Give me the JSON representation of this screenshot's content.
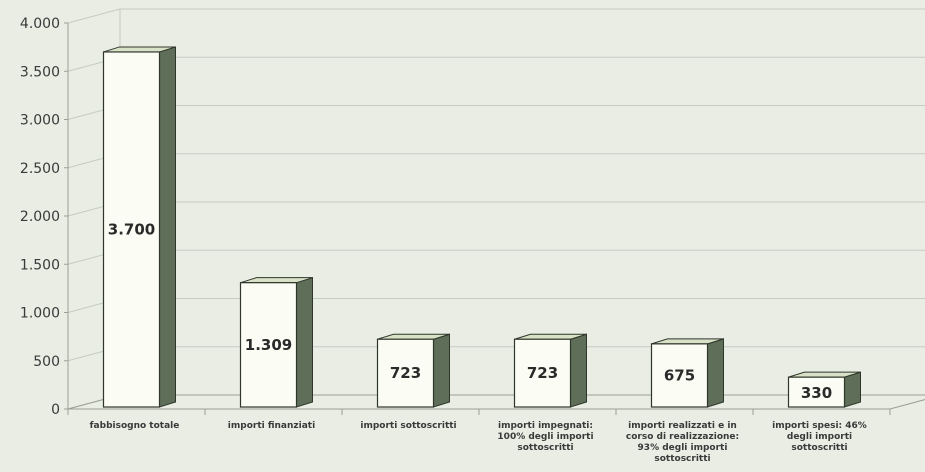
{
  "chart_data": {
    "type": "bar",
    "categories": [
      [
        "fabbisogno totale"
      ],
      [
        "importi finanziati"
      ],
      [
        "importi sottoscritti"
      ],
      [
        "importi impegnati:",
        "100% degli importi",
        "sottoscritti"
      ],
      [
        "importi realizzati e in",
        "corso di realizzazione:",
        "93% degli importi",
        "sottoscritti"
      ],
      [
        "importi spesi: 46%",
        "degli importi",
        "sottoscritti"
      ]
    ],
    "values": [
      3700,
      1309,
      723,
      723,
      675,
      330
    ],
    "data_labels": [
      "3.700",
      "1.309",
      "723",
      "723",
      "675",
      "330"
    ],
    "yticks": [
      0,
      500,
      1000,
      1500,
      2000,
      2500,
      3000,
      3500,
      4000
    ],
    "ytick_labels": [
      "0",
      "500",
      "1.000",
      "1.500",
      "2.000",
      "2.500",
      "3.000",
      "3.500",
      "4.000"
    ],
    "ylim": [
      0,
      4000
    ],
    "grid": true,
    "style": "3d-column",
    "colors": {
      "background": "#e9ede4",
      "bar_front": "#fbfcf3",
      "bar_side": "#5e6e58",
      "bar_top": "#d9e2c6",
      "bar_outline": "#2f362c",
      "grid": "#c7ccc2",
      "axis": "#9aa095"
    }
  }
}
